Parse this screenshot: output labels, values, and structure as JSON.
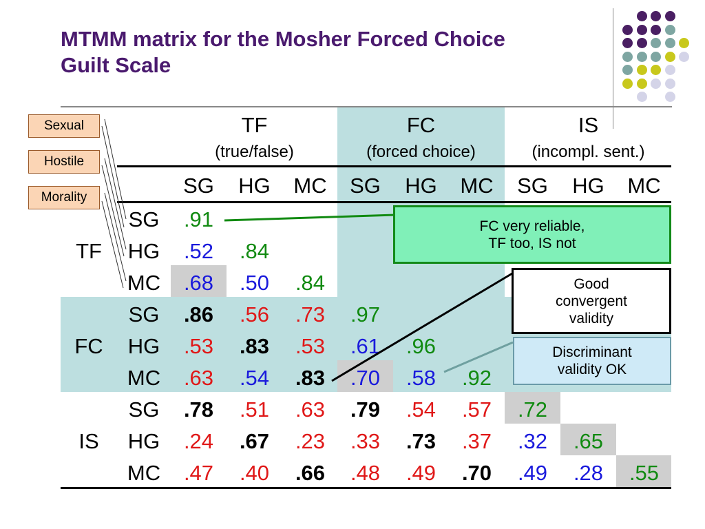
{
  "title_line1": "MTMM matrix for the Mosher Forced Choice",
  "title_line2": "Guilt Scale",
  "colors": {
    "title": "#4a1a6e",
    "purple": "#4a1f63",
    "teal": "#7ea6a2",
    "olive": "#c8c81c",
    "lavender": "#d4d4e8"
  },
  "tags": [
    "Sexual",
    "Hostile",
    "Morality"
  ],
  "methods": [
    {
      "abbr": "TF",
      "full": "(true/false)"
    },
    {
      "abbr": "FC",
      "full": "(forced choice)"
    },
    {
      "abbr": "IS",
      "full": "(incompl. sent.)"
    }
  ],
  "traits": [
    "SG",
    "HG",
    "MC"
  ],
  "matrix": [
    [
      {
        "v": ".91",
        "c": "green",
        "b": false
      }
    ],
    [
      {
        "v": ".52",
        "c": "blue",
        "b": false
      },
      {
        "v": ".84",
        "c": "green",
        "b": false
      }
    ],
    [
      {
        "v": ".68",
        "c": "blue",
        "b": false
      },
      {
        "v": ".50",
        "c": "blue",
        "b": false
      },
      {
        "v": ".84",
        "c": "green",
        "b": false
      }
    ],
    [
      {
        "v": ".86",
        "c": "black",
        "b": true
      },
      {
        "v": ".56",
        "c": "red",
        "b": false
      },
      {
        "v": ".73",
        "c": "red",
        "b": false
      },
      {
        "v": ".97",
        "c": "green",
        "b": false
      }
    ],
    [
      {
        "v": ".53",
        "c": "red",
        "b": false
      },
      {
        "v": ".83",
        "c": "black",
        "b": true
      },
      {
        "v": ".53",
        "c": "red",
        "b": false
      },
      {
        "v": ".61",
        "c": "blue",
        "b": false
      },
      {
        "v": ".96",
        "c": "green",
        "b": false
      }
    ],
    [
      {
        "v": ".63",
        "c": "red",
        "b": false
      },
      {
        "v": ".54",
        "c": "blue",
        "b": false
      },
      {
        "v": ".83",
        "c": "black",
        "b": true
      },
      {
        "v": ".70",
        "c": "blue",
        "b": false
      },
      {
        "v": ".58",
        "c": "blue",
        "b": false
      },
      {
        "v": ".92",
        "c": "green",
        "b": false
      }
    ],
    [
      {
        "v": ".78",
        "c": "black",
        "b": true
      },
      {
        "v": ".51",
        "c": "red",
        "b": false
      },
      {
        "v": ".63",
        "c": "red",
        "b": false
      },
      {
        "v": ".79",
        "c": "black",
        "b": true
      },
      {
        "v": ".54",
        "c": "red",
        "b": false
      },
      {
        "v": ".57",
        "c": "red",
        "b": false
      },
      {
        "v": ".72",
        "c": "green",
        "b": false
      }
    ],
    [
      {
        "v": ".24",
        "c": "red",
        "b": false
      },
      {
        "v": ".67",
        "c": "black",
        "b": true
      },
      {
        "v": ".23",
        "c": "red",
        "b": false
      },
      {
        "v": ".33",
        "c": "red",
        "b": false
      },
      {
        "v": ".73",
        "c": "black",
        "b": true
      },
      {
        "v": ".37",
        "c": "red",
        "b": false
      },
      {
        "v": ".32",
        "c": "blue",
        "b": false
      },
      {
        "v": ".65",
        "c": "green",
        "b": false
      }
    ],
    [
      {
        "v": ".47",
        "c": "red",
        "b": false
      },
      {
        "v": ".40",
        "c": "red",
        "b": false
      },
      {
        "v": ".66",
        "c": "black",
        "b": true
      },
      {
        "v": ".48",
        "c": "red",
        "b": false
      },
      {
        "v": ".49",
        "c": "red",
        "b": false
      },
      {
        "v": ".70",
        "c": "black",
        "b": true
      },
      {
        "v": ".49",
        "c": "blue",
        "b": false
      },
      {
        "v": ".28",
        "c": "blue",
        "b": false
      },
      {
        "v": ".55",
        "c": "green",
        "b": false
      }
    ]
  ],
  "callouts": {
    "reliability_line1": "FC very reliable,",
    "reliability_line2": "TF too, IS not",
    "convergent_line1": "Good",
    "convergent_line2": "convergent",
    "convergent_line3": "validity",
    "discriminant_line1": "Discriminant",
    "discriminant_line2": "validity OK"
  }
}
